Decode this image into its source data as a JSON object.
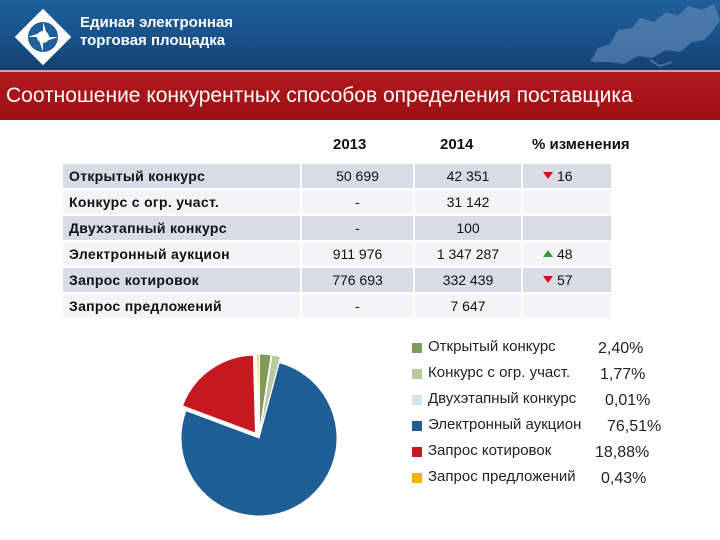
{
  "header": {
    "brand_line1": "Единая электронная",
    "brand_line2": "торговая площадка",
    "logo_icon": "etp-star-logo-icon",
    "map_icon": "russia-map-icon"
  },
  "title": "Соотношение конкурентных способов определения поставщика",
  "table": {
    "col_2013": "2013",
    "col_2014": "2014",
    "col_change": "% изменения",
    "rows": [
      {
        "label": "Открытый конкурс",
        "v2013": "50 699",
        "v2014": "42 351",
        "change": "16",
        "trend": "down"
      },
      {
        "label": "Конкурс с огр. участ.",
        "v2013": "-",
        "v2014": "31 142",
        "change": "",
        "trend": ""
      },
      {
        "label": "Двухэтапный конкурс",
        "v2013": "-",
        "v2014": "100",
        "change": "",
        "trend": ""
      },
      {
        "label": "Электронный аукцион",
        "v2013": "911 976",
        "v2014": "1 347 287",
        "change": "48",
        "trend": "up"
      },
      {
        "label": "Запрос котировок",
        "v2013": "776 693",
        "v2014": "332 439",
        "change": "57",
        "trend": "down"
      },
      {
        "label": "Запрос предложений",
        "v2013": "-",
        "v2014": "7 647",
        "change": "",
        "trend": ""
      }
    ]
  },
  "chart_data": {
    "type": "pie",
    "title": "",
    "categories": [
      "Открытый конкурс",
      "Конкурс с огр. участ.",
      "Двухэтапный конкурс",
      "Электронный аукцион",
      "Запрос котировок",
      "Запрос предложений"
    ],
    "values": [
      2.4,
      1.77,
      0.01,
      76.51,
      18.88,
      0.43
    ],
    "labels": [
      "2,40%",
      "1,77%",
      "0,01%",
      "76,51%",
      "18,88%",
      "0,43%"
    ],
    "colors": [
      "#7f9a5a",
      "#b8c9a0",
      "#cfe6f0",
      "#1f5d95",
      "#c41a1f",
      "#f1b400"
    ],
    "legend_position": "right",
    "exploded": true
  }
}
